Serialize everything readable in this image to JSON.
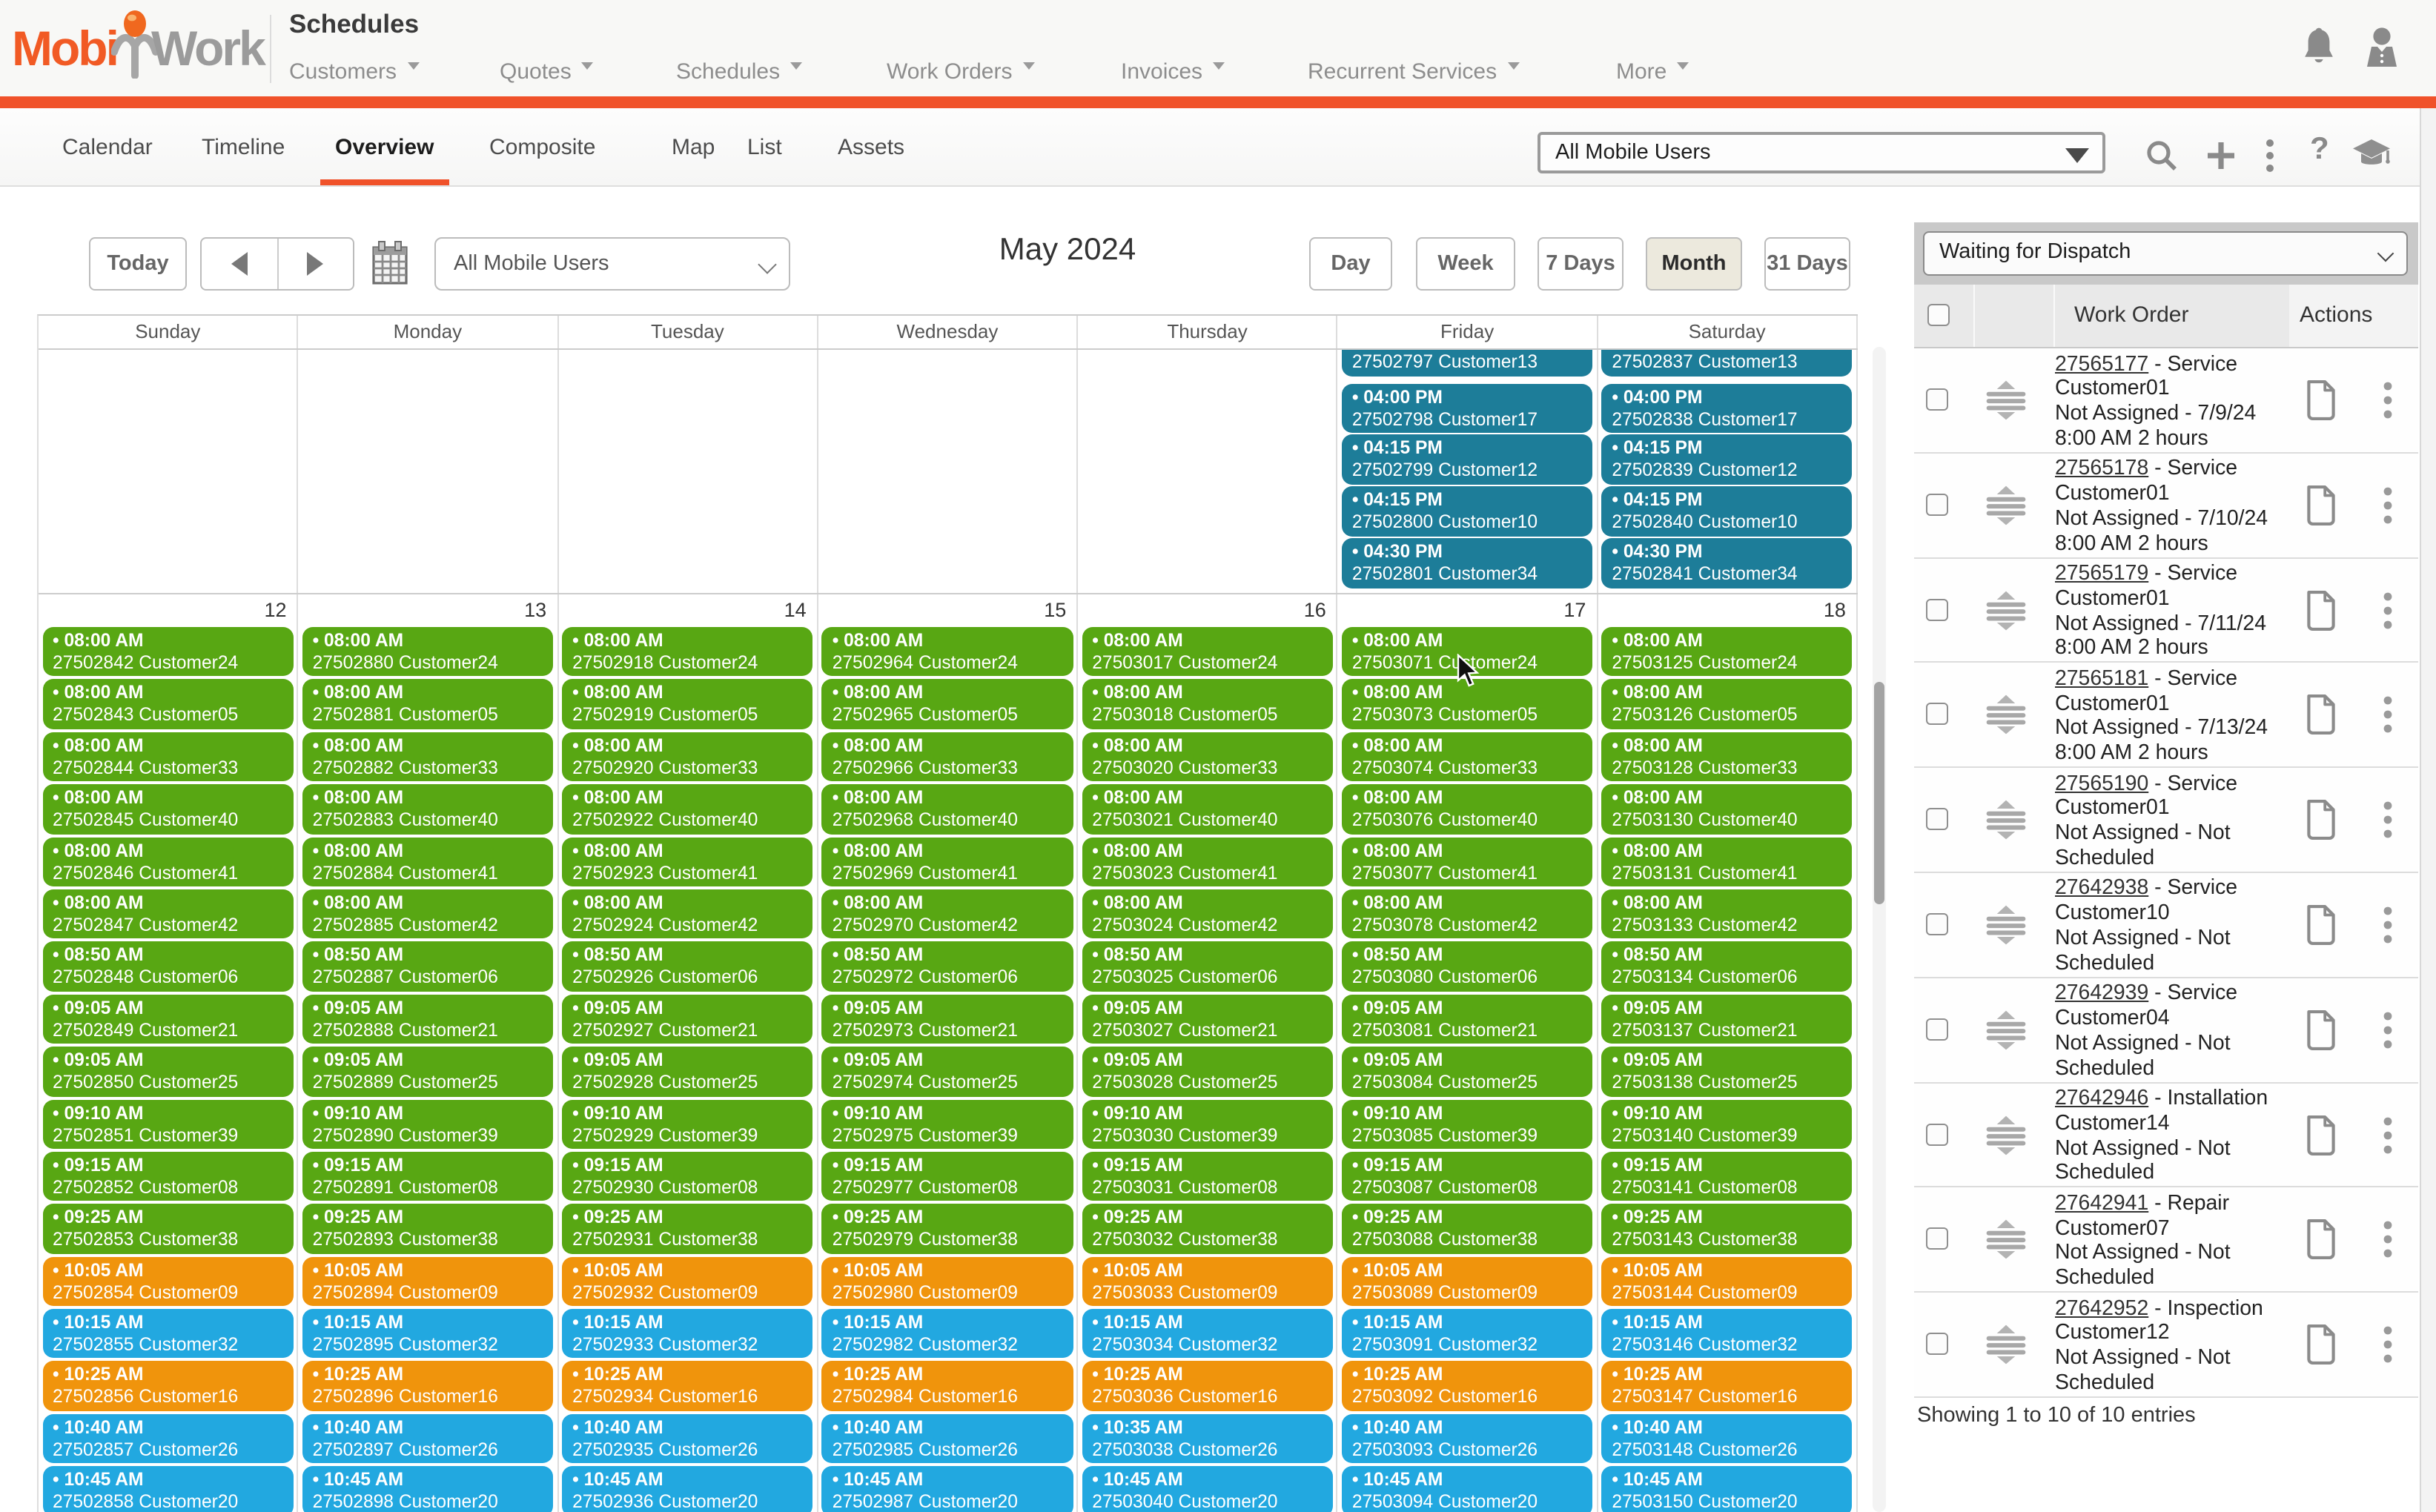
{
  "header": {
    "logo_part1": "Mobi",
    "logo_part2": "Work",
    "page_title": "Schedules",
    "nav": [
      {
        "label": "Customers"
      },
      {
        "label": "Quotes"
      },
      {
        "label": "Schedules"
      },
      {
        "label": "Work Orders"
      },
      {
        "label": "Invoices"
      },
      {
        "label": "Recurrent Services"
      },
      {
        "label": "More"
      }
    ]
  },
  "tab_bar": {
    "tabs": [
      "Calendar",
      "Timeline",
      "Overview",
      "Composite",
      "Map",
      "List",
      "Assets"
    ],
    "active_tab": "Overview",
    "team_select_value": "All Mobile Users"
  },
  "toolbar": {
    "today_label": "Today",
    "team_select_value": "All Mobile Users",
    "title": "May 2024",
    "view_buttons": [
      "Day",
      "Week",
      "7 Days",
      "Month",
      "31 Days"
    ],
    "active_view": "Month"
  },
  "colors": {
    "brand_orange": "#f0522a",
    "event_green": "#58a713",
    "event_teal": "#1d7d99",
    "event_orange": "#f0940c",
    "event_blue": "#22a8e0"
  },
  "calendar": {
    "day_headers": [
      "Sunday",
      "Monday",
      "Tuesday",
      "Wednesday",
      "Thursday",
      "Friday",
      "Saturday"
    ],
    "week1_columns": [
      [],
      [],
      [],
      [],
      [],
      [
        [
          null,
          "27502797 Customer13"
        ],
        [
          "04:00 PM",
          "27502798 Customer17"
        ],
        [
          "04:15 PM",
          "27502799 Customer12"
        ],
        [
          "04:15 PM",
          "27502800 Customer10"
        ],
        [
          "04:30 PM",
          "27502801 Customer34"
        ]
      ],
      [
        [
          null,
          "27502837 Customer13"
        ],
        [
          "04:00 PM",
          "27502838 Customer17"
        ],
        [
          "04:15 PM",
          "27502839 Customer12"
        ],
        [
          "04:15 PM",
          "27502840 Customer10"
        ],
        [
          "04:30 PM",
          "27502841 Customer34"
        ]
      ]
    ],
    "week2_dates": [
      "12",
      "13",
      "14",
      "15",
      "16",
      "17",
      "18"
    ],
    "week2_columns": [
      [
        [
          "08:00 AM",
          "27502842 Customer24",
          "green"
        ],
        [
          "08:00 AM",
          "27502843 Customer05",
          "green"
        ],
        [
          "08:00 AM",
          "27502844 Customer33",
          "green"
        ],
        [
          "08:00 AM",
          "27502845 Customer40",
          "green"
        ],
        [
          "08:00 AM",
          "27502846 Customer41",
          "green"
        ],
        [
          "08:00 AM",
          "27502847 Customer42",
          "green"
        ],
        [
          "08:50 AM",
          "27502848 Customer06",
          "green"
        ],
        [
          "09:05 AM",
          "27502849 Customer21",
          "green"
        ],
        [
          "09:05 AM",
          "27502850 Customer25",
          "green"
        ],
        [
          "09:10 AM",
          "27502851 Customer39",
          "green"
        ],
        [
          "09:15 AM",
          "27502852 Customer08",
          "green"
        ],
        [
          "09:25 AM",
          "27502853 Customer38",
          "green"
        ],
        [
          "10:05 AM",
          "27502854 Customer09",
          "orange"
        ],
        [
          "10:15 AM",
          "27502855 Customer32",
          "blue"
        ],
        [
          "10:25 AM",
          "27502856 Customer16",
          "orange"
        ],
        [
          "10:40 AM",
          "27502857 Customer26",
          "blue"
        ],
        [
          "10:45 AM",
          "27502858 Customer20",
          "blue"
        ]
      ],
      [
        [
          "08:00 AM",
          "27502880 Customer24",
          "green"
        ],
        [
          "08:00 AM",
          "27502881 Customer05",
          "green"
        ],
        [
          "08:00 AM",
          "27502882 Customer33",
          "green"
        ],
        [
          "08:00 AM",
          "27502883 Customer40",
          "green"
        ],
        [
          "08:00 AM",
          "27502884 Customer41",
          "green"
        ],
        [
          "08:00 AM",
          "27502885 Customer42",
          "green"
        ],
        [
          "08:50 AM",
          "27502887 Customer06",
          "green"
        ],
        [
          "09:05 AM",
          "27502888 Customer21",
          "green"
        ],
        [
          "09:05 AM",
          "27502889 Customer25",
          "green"
        ],
        [
          "09:10 AM",
          "27502890 Customer39",
          "green"
        ],
        [
          "09:15 AM",
          "27502891 Customer08",
          "green"
        ],
        [
          "09:25 AM",
          "27502893 Customer38",
          "green"
        ],
        [
          "10:05 AM",
          "27502894 Customer09",
          "orange"
        ],
        [
          "10:15 AM",
          "27502895 Customer32",
          "blue"
        ],
        [
          "10:25 AM",
          "27502896 Customer16",
          "orange"
        ],
        [
          "10:40 AM",
          "27502897 Customer26",
          "blue"
        ],
        [
          "10:45 AM",
          "27502898 Customer20",
          "blue"
        ]
      ],
      [
        [
          "08:00 AM",
          "27502918 Customer24",
          "green"
        ],
        [
          "08:00 AM",
          "27502919 Customer05",
          "green"
        ],
        [
          "08:00 AM",
          "27502920 Customer33",
          "green"
        ],
        [
          "08:00 AM",
          "27502922 Customer40",
          "green"
        ],
        [
          "08:00 AM",
          "27502923 Customer41",
          "green"
        ],
        [
          "08:00 AM",
          "27502924 Customer42",
          "green"
        ],
        [
          "08:50 AM",
          "27502926 Customer06",
          "green"
        ],
        [
          "09:05 AM",
          "27502927 Customer21",
          "green"
        ],
        [
          "09:05 AM",
          "27502928 Customer25",
          "green"
        ],
        [
          "09:10 AM",
          "27502929 Customer39",
          "green"
        ],
        [
          "09:15 AM",
          "27502930 Customer08",
          "green"
        ],
        [
          "09:25 AM",
          "27502931 Customer38",
          "green"
        ],
        [
          "10:05 AM",
          "27502932 Customer09",
          "orange"
        ],
        [
          "10:15 AM",
          "27502933 Customer32",
          "blue"
        ],
        [
          "10:25 AM",
          "27502934 Customer16",
          "orange"
        ],
        [
          "10:40 AM",
          "27502935 Customer26",
          "blue"
        ],
        [
          "10:45 AM",
          "27502936 Customer20",
          "blue"
        ]
      ],
      [
        [
          "08:00 AM",
          "27502964 Customer24",
          "green"
        ],
        [
          "08:00 AM",
          "27502965 Customer05",
          "green"
        ],
        [
          "08:00 AM",
          "27502966 Customer33",
          "green"
        ],
        [
          "08:00 AM",
          "27502968 Customer40",
          "green"
        ],
        [
          "08:00 AM",
          "27502969 Customer41",
          "green"
        ],
        [
          "08:00 AM",
          "27502970 Customer42",
          "green"
        ],
        [
          "08:50 AM",
          "27502972 Customer06",
          "green"
        ],
        [
          "09:05 AM",
          "27502973 Customer21",
          "green"
        ],
        [
          "09:05 AM",
          "27502974 Customer25",
          "green"
        ],
        [
          "09:10 AM",
          "27502975 Customer39",
          "green"
        ],
        [
          "09:15 AM",
          "27502977 Customer08",
          "green"
        ],
        [
          "09:25 AM",
          "27502979 Customer38",
          "green"
        ],
        [
          "10:05 AM",
          "27502980 Customer09",
          "orange"
        ],
        [
          "10:15 AM",
          "27502982 Customer32",
          "blue"
        ],
        [
          "10:25 AM",
          "27502984 Customer16",
          "orange"
        ],
        [
          "10:40 AM",
          "27502985 Customer26",
          "blue"
        ],
        [
          "10:45 AM",
          "27502987 Customer20",
          "blue"
        ]
      ],
      [
        [
          "08:00 AM",
          "27503017 Customer24",
          "green"
        ],
        [
          "08:00 AM",
          "27503018 Customer05",
          "green"
        ],
        [
          "08:00 AM",
          "27503020 Customer33",
          "green"
        ],
        [
          "08:00 AM",
          "27503021 Customer40",
          "green"
        ],
        [
          "08:00 AM",
          "27503023 Customer41",
          "green"
        ],
        [
          "08:00 AM",
          "27503024 Customer42",
          "green"
        ],
        [
          "08:50 AM",
          "27503025 Customer06",
          "green"
        ],
        [
          "09:05 AM",
          "27503027 Customer21",
          "green"
        ],
        [
          "09:05 AM",
          "27503028 Customer25",
          "green"
        ],
        [
          "09:10 AM",
          "27503030 Customer39",
          "green"
        ],
        [
          "09:15 AM",
          "27503031 Customer08",
          "green"
        ],
        [
          "09:25 AM",
          "27503032 Customer38",
          "green"
        ],
        [
          "10:05 AM",
          "27503033 Customer09",
          "orange"
        ],
        [
          "10:15 AM",
          "27503034 Customer32",
          "blue"
        ],
        [
          "10:25 AM",
          "27503036 Customer16",
          "orange"
        ],
        [
          "10:35 AM",
          "27503038 Customer26",
          "blue"
        ],
        [
          "10:45 AM",
          "27503040 Customer20",
          "blue"
        ]
      ],
      [
        [
          "08:00 AM",
          "27503071 Customer24",
          "green"
        ],
        [
          "08:00 AM",
          "27503073 Customer05",
          "green"
        ],
        [
          "08:00 AM",
          "27503074 Customer33",
          "green"
        ],
        [
          "08:00 AM",
          "27503076 Customer40",
          "green"
        ],
        [
          "08:00 AM",
          "27503077 Customer41",
          "green"
        ],
        [
          "08:00 AM",
          "27503078 Customer42",
          "green"
        ],
        [
          "08:50 AM",
          "27503080 Customer06",
          "green"
        ],
        [
          "09:05 AM",
          "27503081 Customer21",
          "green"
        ],
        [
          "09:05 AM",
          "27503084 Customer25",
          "green"
        ],
        [
          "09:10 AM",
          "27503085 Customer39",
          "green"
        ],
        [
          "09:15 AM",
          "27503087 Customer08",
          "green"
        ],
        [
          "09:25 AM",
          "27503088 Customer38",
          "green"
        ],
        [
          "10:05 AM",
          "27503089 Customer09",
          "orange"
        ],
        [
          "10:15 AM",
          "27503091 Customer32",
          "blue"
        ],
        [
          "10:25 AM",
          "27503092 Customer16",
          "orange"
        ],
        [
          "10:40 AM",
          "27503093 Customer26",
          "blue"
        ],
        [
          "10:45 AM",
          "27503094 Customer20",
          "blue"
        ]
      ],
      [
        [
          "08:00 AM",
          "27503125 Customer24",
          "green"
        ],
        [
          "08:00 AM",
          "27503126 Customer05",
          "green"
        ],
        [
          "08:00 AM",
          "27503128 Customer33",
          "green"
        ],
        [
          "08:00 AM",
          "27503130 Customer40",
          "green"
        ],
        [
          "08:00 AM",
          "27503131 Customer41",
          "green"
        ],
        [
          "08:00 AM",
          "27503133 Customer42",
          "green"
        ],
        [
          "08:50 AM",
          "27503134 Customer06",
          "green"
        ],
        [
          "09:05 AM",
          "27503137 Customer21",
          "green"
        ],
        [
          "09:05 AM",
          "27503138 Customer25",
          "green"
        ],
        [
          "09:10 AM",
          "27503140 Customer39",
          "green"
        ],
        [
          "09:15 AM",
          "27503141 Customer08",
          "green"
        ],
        [
          "09:25 AM",
          "27503143 Customer38",
          "green"
        ],
        [
          "10:05 AM",
          "27503144 Customer09",
          "orange"
        ],
        [
          "10:15 AM",
          "27503146 Customer32",
          "blue"
        ],
        [
          "10:25 AM",
          "27503147 Customer16",
          "orange"
        ],
        [
          "10:40 AM",
          "27503148 Customer26",
          "blue"
        ],
        [
          "10:45 AM",
          "27503150 Customer20",
          "blue"
        ]
      ]
    ]
  },
  "dispatch_panel": {
    "filter_value": "Waiting for Dispatch",
    "columns": {
      "work_order": "Work Order",
      "actions": "Actions"
    },
    "rows": [
      {
        "id": "27565177",
        "type": "Service",
        "lines": [
          "Customer01",
          "Not Assigned - 7/9/24",
          "8:00 AM 2 hours"
        ]
      },
      {
        "id": "27565178",
        "type": "Service",
        "lines": [
          "Customer01",
          "Not Assigned - 7/10/24",
          "8:00 AM 2 hours"
        ]
      },
      {
        "id": "27565179",
        "type": "Service",
        "lines": [
          "Customer01",
          "Not Assigned - 7/11/24",
          "8:00 AM 2 hours"
        ]
      },
      {
        "id": "27565181",
        "type": "Service",
        "lines": [
          "Customer01",
          "Not Assigned - 7/13/24",
          "8:00 AM 2 hours"
        ]
      },
      {
        "id": "27565190",
        "type": "Service",
        "lines": [
          "Customer01",
          "Not Assigned - Not",
          "Scheduled"
        ]
      },
      {
        "id": "27642938",
        "type": "Service",
        "lines": [
          "Customer10",
          "Not Assigned - Not",
          "Scheduled"
        ]
      },
      {
        "id": "27642939",
        "type": "Service",
        "lines": [
          "Customer04",
          "Not Assigned - Not",
          "Scheduled"
        ]
      },
      {
        "id": "27642946",
        "type": "Installation",
        "lines": [
          "Customer14",
          "Not Assigned - Not",
          "Scheduled"
        ]
      },
      {
        "id": "27642941",
        "type": "Repair",
        "lines": [
          "Customer07",
          "Not Assigned - Not",
          "Scheduled"
        ]
      },
      {
        "id": "27642952",
        "type": "Inspection",
        "lines": [
          "Customer12",
          "Not Assigned - Not",
          "Scheduled"
        ]
      }
    ],
    "footer": "Showing 1 to 10 of 10 entries"
  }
}
